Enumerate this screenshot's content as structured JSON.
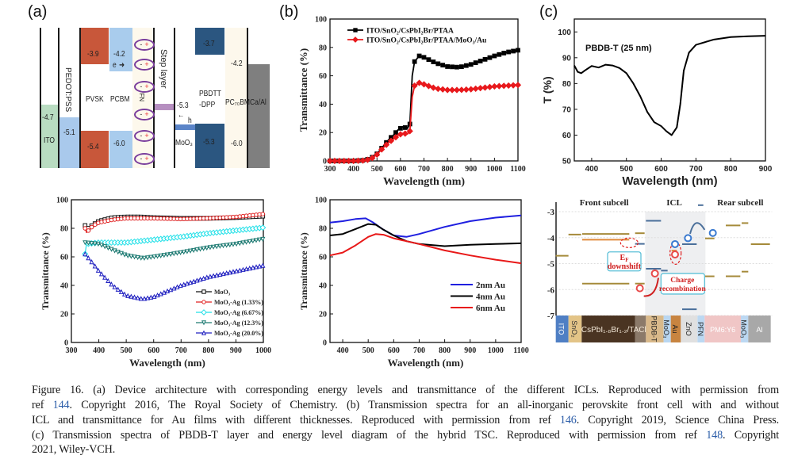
{
  "panel_labels": {
    "a": "(a)",
    "b": "(b)",
    "c": "(c)"
  },
  "energy_diagram_a": {
    "ito": {
      "label": "ITO",
      "level": "-4.7"
    },
    "pedot": {
      "label": "PEDOT:PSS",
      "level": "-5.1"
    },
    "pvsk": {
      "label": "PVSK",
      "lumo": "-3.9",
      "homo": "-5.4"
    },
    "pcbm": {
      "label": "PCBM",
      "lumo": "-4.2",
      "homo": "-6.0",
      "electron": "e"
    },
    "pfn": {
      "label": "PFN",
      "dipole_minus": "-",
      "dipole_plus": "+"
    },
    "step": {
      "label": "Step layer",
      "level": "-5.3",
      "hole": "h"
    },
    "moo3": {
      "label": "MoO₃"
    },
    "pbdtt": {
      "label": "PBDTT\n-DPP",
      "lumo": "-3.7",
      "homo": "-5.3"
    },
    "pc70bm": {
      "label": "PC₇₀BM",
      "lumo": "-4.2",
      "homo": "-6.0"
    },
    "caal": {
      "label": "Ca/Al"
    }
  },
  "chart_data": [
    {
      "id": "b-top",
      "type": "line",
      "title": "",
      "xlabel": "Wavelength (nm)",
      "ylabel": "Transmittance (%)",
      "xlim": [
        300,
        1100
      ],
      "ylim": [
        0,
        100
      ],
      "xticks": [
        300,
        400,
        500,
        600,
        700,
        800,
        900,
        1000,
        1100
      ],
      "yticks": [
        0,
        20,
        40,
        60,
        80,
        100
      ],
      "legend": "top-left",
      "grid": false,
      "series": [
        {
          "name": "ITO/SnO₂/CsPbI₂Br/PTAA",
          "color": "#000000",
          "marker": "square-filled",
          "x": [
            300,
            350,
            400,
            450,
            475,
            500,
            525,
            550,
            575,
            590,
            610,
            630,
            640,
            650,
            660,
            680,
            700,
            750,
            800,
            850,
            900,
            950,
            1000,
            1050,
            1100
          ],
          "y": [
            0,
            0,
            0,
            0.5,
            2,
            5,
            10,
            15,
            19,
            22,
            24,
            23,
            26,
            60,
            70,
            74,
            73,
            69,
            66.5,
            66,
            68,
            71,
            74,
            76.5,
            78
          ]
        },
        {
          "name": "ITO/SnO₂/CsPbI₂Br/PTAA/MoO₃/Au",
          "color": "#e8191c",
          "marker": "diamond-filled",
          "x": [
            300,
            350,
            400,
            450,
            475,
            500,
            525,
            550,
            575,
            590,
            610,
            630,
            640,
            650,
            660,
            680,
            700,
            750,
            800,
            850,
            900,
            950,
            1000,
            1050,
            1100
          ],
          "y": [
            0,
            0,
            0,
            0.3,
            1.5,
            4.5,
            9,
            13,
            16,
            18,
            19.5,
            19,
            21,
            45,
            53,
            55,
            54,
            51,
            50,
            50,
            50.5,
            51.5,
            52.5,
            53,
            53.5
          ]
        }
      ]
    },
    {
      "id": "c-top",
      "type": "line",
      "title": "",
      "xlabel": "Wavelength (nm)",
      "ylabel": "T (%)",
      "annotation": "PBDB-T (25 nm)",
      "xlim": [
        350,
        900
      ],
      "ylim": [
        50,
        105
      ],
      "xticks": [
        400,
        500,
        600,
        700,
        800,
        900
      ],
      "yticks": [
        50,
        60,
        70,
        80,
        90,
        100
      ],
      "legend": "none",
      "grid": false,
      "series": [
        {
          "name": "PBDB-T (25 nm)",
          "color": "#000000",
          "marker": "none",
          "x": [
            350,
            360,
            370,
            380,
            400,
            420,
            440,
            460,
            480,
            500,
            520,
            540,
            560,
            580,
            600,
            615,
            630,
            645,
            655,
            665,
            680,
            700,
            750,
            800,
            850,
            900
          ],
          "y": [
            87,
            84.5,
            84,
            85,
            86.8,
            86.2,
            87.3,
            87,
            86,
            84,
            80,
            75,
            69,
            65,
            63.5,
            61.5,
            60,
            63,
            72,
            85,
            92,
            95,
            97,
            98,
            98.3,
            98.5
          ]
        }
      ]
    },
    {
      "id": "a-bottom",
      "type": "line",
      "title": "",
      "xlabel": "Wavelength (nm)",
      "ylabel": "Transmittance (%)",
      "xlim": [
        300,
        1000
      ],
      "ylim": [
        0,
        100
      ],
      "xticks": [
        300,
        400,
        500,
        600,
        700,
        800,
        900,
        1000
      ],
      "yticks": [
        0,
        20,
        40,
        60,
        80,
        100
      ],
      "legend": "bottom-right",
      "grid": false,
      "series": [
        {
          "name": "MoO₃",
          "color": "#111111",
          "marker": "square-open",
          "x": [
            350,
            355,
            375,
            400,
            450,
            500,
            550,
            600,
            700,
            800,
            900,
            1000
          ],
          "y": [
            82,
            79,
            82,
            85,
            87.5,
            88,
            88,
            87.5,
            87,
            87,
            87.5,
            88.5
          ]
        },
        {
          "name": "MoO₃-Ag (1.33%)",
          "color": "#e02020",
          "marker": "circle-open",
          "x": [
            350,
            355,
            380,
            400,
            450,
            500,
            600,
            700,
            800,
            900,
            1000
          ],
          "y": [
            80,
            77,
            82,
            84,
            86,
            87,
            87,
            86.5,
            87,
            88,
            90
          ]
        },
        {
          "name": "MoO₃-Ag (6.67%)",
          "color": "#22e0e8",
          "marker": "diamond-open",
          "x": [
            350,
            355,
            400,
            500,
            600,
            700,
            800,
            900,
            1000
          ],
          "y": [
            62,
            69,
            70,
            70,
            72,
            74,
            76.5,
            78.5,
            80.5
          ]
        },
        {
          "name": "MoO₃-Ag (12.3%)",
          "color": "#1d7a72",
          "marker": "tri-down-open",
          "x": [
            350,
            400,
            450,
            500,
            560,
            600,
            700,
            800,
            900,
            1000
          ],
          "y": [
            70,
            69,
            65,
            61,
            59,
            60,
            63,
            66.5,
            69,
            72.5
          ]
        },
        {
          "name": "MoO₃-Ag (20.0%)",
          "color": "#2020c0",
          "marker": "tri-up-open",
          "x": [
            350,
            380,
            400,
            450,
            500,
            560,
            600,
            700,
            800,
            900,
            1000
          ],
          "y": [
            62,
            55,
            50,
            40,
            33,
            30.5,
            32,
            40,
            46,
            50,
            54
          ]
        }
      ]
    },
    {
      "id": "b-bottom",
      "type": "line",
      "title": "",
      "xlabel": "Wavelength (nm)",
      "ylabel": "Transmittance (%)",
      "xlim": [
        350,
        1100
      ],
      "ylim": [
        0,
        100
      ],
      "xticks": [
        400,
        500,
        600,
        700,
        800,
        900,
        1000,
        1100
      ],
      "yticks": [
        0,
        20,
        40,
        60,
        80,
        100
      ],
      "legend": "center-right",
      "grid": false,
      "series": [
        {
          "name": "2nm Au",
          "color": "#1f1fe0",
          "marker": "none",
          "x": [
            350,
            400,
            450,
            490,
            520,
            560,
            600,
            650,
            700,
            800,
            900,
            1000,
            1100
          ],
          "y": [
            84,
            85,
            86.5,
            87,
            84,
            79,
            75,
            74,
            76,
            81,
            85,
            87.5,
            89
          ]
        },
        {
          "name": "4nm Au",
          "color": "#000000",
          "marker": "none",
          "x": [
            350,
            400,
            450,
            500,
            530,
            560,
            600,
            650,
            700,
            800,
            900,
            1000,
            1100
          ],
          "y": [
            75,
            76,
            79.5,
            83,
            82.5,
            79,
            75,
            71,
            69,
            67.5,
            68.5,
            69,
            69.5
          ]
        },
        {
          "name": "6nm Au",
          "color": "#e81818",
          "marker": "none",
          "x": [
            350,
            400,
            450,
            500,
            530,
            560,
            600,
            650,
            700,
            800,
            900,
            1000,
            1100
          ],
          "y": [
            61,
            63,
            68,
            74,
            76,
            75.5,
            73,
            71,
            69,
            64.5,
            61,
            58,
            55.5
          ]
        }
      ]
    },
    {
      "id": "c-bottom",
      "type": "energy-diagram",
      "ylim": [
        -7,
        -3
      ],
      "yticks": [
        -3,
        -4,
        -5,
        -6,
        -7
      ],
      "headers": [
        "Front subcell",
        "ICL",
        "Rear subcell"
      ],
      "callouts": {
        "ef_line1": "E",
        "ef_sub": "F",
        "ef_line2": "downshift",
        "recomb_line1": "Charge",
        "recomb_line2": "recombination"
      },
      "layers": [
        "ITO",
        "SnO₂",
        "CsPbI₁.₈Br₁.₂/TACl",
        "PBDB-T",
        "MoO₃",
        "Au",
        "ZnO",
        "PFN",
        "PM6:Y6",
        "MoO₃",
        "Al"
      ],
      "levels": [
        {
          "layer": "ITO",
          "energy": -4.7,
          "color": "#a58a3a"
        },
        {
          "layer": "SnO₂",
          "energy": -3.88,
          "color": "#a58a3a"
        },
        {
          "layer": "CsPbI₁.₈Br₁.₂",
          "energy": -3.86,
          "color": "#a58a3a"
        },
        {
          "layer": "CsPbI₁.₈Br₁.₂",
          "energy": -4.08,
          "color": "#e08a3c"
        },
        {
          "layer": "CsPbI₁.₈Br₁.₂",
          "energy": -5.77,
          "color": "#a58a3a"
        },
        {
          "layer": "TACl",
          "energy": -3.83,
          "color": "#a58a3a"
        },
        {
          "layer": "TACl",
          "energy": -5.77,
          "color": "#a58a3a"
        },
        {
          "layer": "TACl",
          "energy": -4.24,
          "color": "#4a6f9a"
        },
        {
          "layer": "PBDB-T",
          "energy": -3.35,
          "color": "#4a6f9a"
        },
        {
          "layer": "PBDB-T",
          "energy": -5.2,
          "color": "#4a6f9a"
        },
        {
          "layer": "MoO₃",
          "energy": -5.27,
          "color": "#4a6f9a"
        },
        {
          "layer": "Au",
          "energy": -4.5,
          "color": "#e08a3c"
        },
        {
          "layer": "ZnO",
          "energy": -4.25,
          "color": "#4a6f9a"
        },
        {
          "layer": "ZnO",
          "energy": -6.76,
          "color": "#4a6f9a"
        },
        {
          "layer": "PFN",
          "energy": -2.75,
          "color": "#4a6f9a"
        },
        {
          "layer": "PM6:Y6",
          "energy": -4.03,
          "color": "#a58a3a"
        },
        {
          "layer": "PM6:Y6",
          "energy": -5.49,
          "color": "#a58a3a"
        },
        {
          "layer": "PM6:Y6",
          "energy": -3.53,
          "color": "#a58a3a"
        },
        {
          "layer": "PM6:Y6",
          "energy": -5.49,
          "color": "#a58a3a"
        },
        {
          "layer": "MoO₃",
          "energy": -3.44,
          "color": "#a58a3a"
        },
        {
          "layer": "MoO₃",
          "energy": -5.31,
          "color": "#a58a3a"
        },
        {
          "layer": "Al",
          "energy": -4.25,
          "color": "#a58a3a"
        }
      ]
    }
  ],
  "caption": {
    "l1": "Figure 16. (a) Device architecture with corresponding energy levels and transmittance of the different ICLs. Reproduced with permission from",
    "l2a": "ref ",
    "l2ref": "144",
    "l2b": ". Copyright 2016, The Royal Society of Chemistry. (b) Transmission spectra for an all-inorganic perovskite front cell with and without",
    "l3a": "ICL and transmittance for Au films with different thicknesses. Reproduced with permission from ref ",
    "l3ref": "146",
    "l3b": ". Copyright 2019, Science China Press.",
    "l4a": "(c) Transmission spectra of PBDB-T layer and energy level diagram of the hybrid TSC. Reproduced with permission from ref ",
    "l4ref": "148",
    "l4b": ". Copyright",
    "l5": "2021, Wiley-VCH."
  }
}
